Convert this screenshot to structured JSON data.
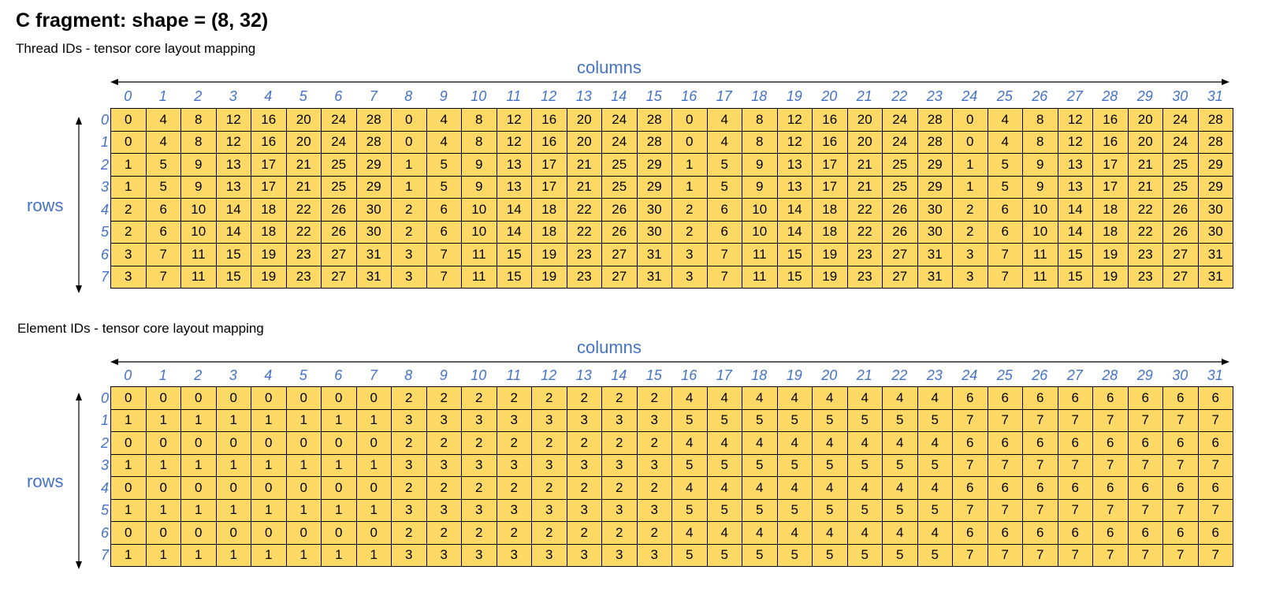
{
  "title": "C fragment: shape = (8, 32)",
  "sections": [
    {
      "subtitle": "Thread IDs - tensor core layout mapping",
      "columns_label": "columns",
      "rows_label": "rows",
      "col_indices": [
        "0",
        "1",
        "2",
        "3",
        "4",
        "5",
        "6",
        "7",
        "8",
        "9",
        "10",
        "11",
        "12",
        "13",
        "14",
        "15",
        "16",
        "17",
        "18",
        "19",
        "20",
        "21",
        "22",
        "23",
        "24",
        "25",
        "26",
        "27",
        "28",
        "29",
        "30",
        "31"
      ],
      "row_indices": [
        "0",
        "1",
        "2",
        "3",
        "4",
        "5",
        "6",
        "7"
      ],
      "cells": [
        [
          "0",
          "4",
          "8",
          "12",
          "16",
          "20",
          "24",
          "28",
          "0",
          "4",
          "8",
          "12",
          "16",
          "20",
          "24",
          "28",
          "0",
          "4",
          "8",
          "12",
          "16",
          "20",
          "24",
          "28",
          "0",
          "4",
          "8",
          "12",
          "16",
          "20",
          "24",
          "28"
        ],
        [
          "0",
          "4",
          "8",
          "12",
          "16",
          "20",
          "24",
          "28",
          "0",
          "4",
          "8",
          "12",
          "16",
          "20",
          "24",
          "28",
          "0",
          "4",
          "8",
          "12",
          "16",
          "20",
          "24",
          "28",
          "0",
          "4",
          "8",
          "12",
          "16",
          "20",
          "24",
          "28"
        ],
        [
          "1",
          "5",
          "9",
          "13",
          "17",
          "21",
          "25",
          "29",
          "1",
          "5",
          "9",
          "13",
          "17",
          "21",
          "25",
          "29",
          "1",
          "5",
          "9",
          "13",
          "17",
          "21",
          "25",
          "29",
          "1",
          "5",
          "9",
          "13",
          "17",
          "21",
          "25",
          "29"
        ],
        [
          "1",
          "5",
          "9",
          "13",
          "17",
          "21",
          "25",
          "29",
          "1",
          "5",
          "9",
          "13",
          "17",
          "21",
          "25",
          "29",
          "1",
          "5",
          "9",
          "13",
          "17",
          "21",
          "25",
          "29",
          "1",
          "5",
          "9",
          "13",
          "17",
          "21",
          "25",
          "29"
        ],
        [
          "2",
          "6",
          "10",
          "14",
          "18",
          "22",
          "26",
          "30",
          "2",
          "6",
          "10",
          "14",
          "18",
          "22",
          "26",
          "30",
          "2",
          "6",
          "10",
          "14",
          "18",
          "22",
          "26",
          "30",
          "2",
          "6",
          "10",
          "14",
          "18",
          "22",
          "26",
          "30"
        ],
        [
          "2",
          "6",
          "10",
          "14",
          "18",
          "22",
          "26",
          "30",
          "2",
          "6",
          "10",
          "14",
          "18",
          "22",
          "26",
          "30",
          "2",
          "6",
          "10",
          "14",
          "18",
          "22",
          "26",
          "30",
          "2",
          "6",
          "10",
          "14",
          "18",
          "22",
          "26",
          "30"
        ],
        [
          "3",
          "7",
          "11",
          "15",
          "19",
          "23",
          "27",
          "31",
          "3",
          "7",
          "11",
          "15",
          "19",
          "23",
          "27",
          "31",
          "3",
          "7",
          "11",
          "15",
          "19",
          "23",
          "27",
          "31",
          "3",
          "7",
          "11",
          "15",
          "19",
          "23",
          "27",
          "31"
        ],
        [
          "3",
          "7",
          "11",
          "15",
          "19",
          "23",
          "27",
          "31",
          "3",
          "7",
          "11",
          "15",
          "19",
          "23",
          "27",
          "31",
          "3",
          "7",
          "11",
          "15",
          "19",
          "23",
          "27",
          "31",
          "3",
          "7",
          "11",
          "15",
          "19",
          "23",
          "27",
          "31"
        ]
      ]
    },
    {
      "subtitle": "Element IDs - tensor core layout mapping",
      "columns_label": "columns",
      "rows_label": "rows",
      "col_indices": [
        "0",
        "1",
        "2",
        "3",
        "4",
        "5",
        "6",
        "7",
        "8",
        "9",
        "10",
        "11",
        "12",
        "13",
        "14",
        "15",
        "16",
        "17",
        "18",
        "19",
        "20",
        "21",
        "22",
        "23",
        "24",
        "25",
        "26",
        "27",
        "28",
        "29",
        "30",
        "31"
      ],
      "row_indices": [
        "0",
        "1",
        "2",
        "3",
        "4",
        "5",
        "6",
        "7"
      ],
      "cells": [
        [
          "0",
          "0",
          "0",
          "0",
          "0",
          "0",
          "0",
          "0",
          "2",
          "2",
          "2",
          "2",
          "2",
          "2",
          "2",
          "2",
          "4",
          "4",
          "4",
          "4",
          "4",
          "4",
          "4",
          "4",
          "6",
          "6",
          "6",
          "6",
          "6",
          "6",
          "6",
          "6"
        ],
        [
          "1",
          "1",
          "1",
          "1",
          "1",
          "1",
          "1",
          "1",
          "3",
          "3",
          "3",
          "3",
          "3",
          "3",
          "3",
          "3",
          "5",
          "5",
          "5",
          "5",
          "5",
          "5",
          "5",
          "5",
          "7",
          "7",
          "7",
          "7",
          "7",
          "7",
          "7",
          "7"
        ],
        [
          "0",
          "0",
          "0",
          "0",
          "0",
          "0",
          "0",
          "0",
          "2",
          "2",
          "2",
          "2",
          "2",
          "2",
          "2",
          "2",
          "4",
          "4",
          "4",
          "4",
          "4",
          "4",
          "4",
          "4",
          "6",
          "6",
          "6",
          "6",
          "6",
          "6",
          "6",
          "6"
        ],
        [
          "1",
          "1",
          "1",
          "1",
          "1",
          "1",
          "1",
          "1",
          "3",
          "3",
          "3",
          "3",
          "3",
          "3",
          "3",
          "3",
          "5",
          "5",
          "5",
          "5",
          "5",
          "5",
          "5",
          "5",
          "7",
          "7",
          "7",
          "7",
          "7",
          "7",
          "7",
          "7"
        ],
        [
          "0",
          "0",
          "0",
          "0",
          "0",
          "0",
          "0",
          "0",
          "2",
          "2",
          "2",
          "2",
          "2",
          "2",
          "2",
          "2",
          "4",
          "4",
          "4",
          "4",
          "4",
          "4",
          "4",
          "4",
          "6",
          "6",
          "6",
          "6",
          "6",
          "6",
          "6",
          "6"
        ],
        [
          "1",
          "1",
          "1",
          "1",
          "1",
          "1",
          "1",
          "1",
          "3",
          "3",
          "3",
          "3",
          "3",
          "3",
          "3",
          "3",
          "5",
          "5",
          "5",
          "5",
          "5",
          "5",
          "5",
          "5",
          "7",
          "7",
          "7",
          "7",
          "7",
          "7",
          "7",
          "7"
        ],
        [
          "0",
          "0",
          "0",
          "0",
          "0",
          "0",
          "0",
          "0",
          "2",
          "2",
          "2",
          "2",
          "2",
          "2",
          "2",
          "2",
          "4",
          "4",
          "4",
          "4",
          "4",
          "4",
          "4",
          "4",
          "6",
          "6",
          "6",
          "6",
          "6",
          "6",
          "6",
          "6"
        ],
        [
          "1",
          "1",
          "1",
          "1",
          "1",
          "1",
          "1",
          "1",
          "3",
          "3",
          "3",
          "3",
          "3",
          "3",
          "3",
          "3",
          "5",
          "5",
          "5",
          "5",
          "5",
          "5",
          "5",
          "5",
          "7",
          "7",
          "7",
          "7",
          "7",
          "7",
          "7",
          "7"
        ]
      ]
    }
  ],
  "colors": {
    "cell_fill": "#ffd966",
    "axis_text": "#4472c4"
  }
}
